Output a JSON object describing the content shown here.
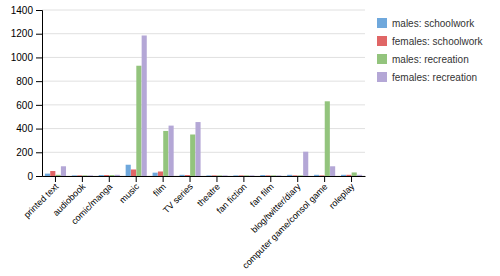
{
  "chart_data": {
    "type": "bar",
    "categories": [
      "printed text",
      "audiobook",
      "comic/manga",
      "music",
      "film",
      "TV series",
      "theatre",
      "fan fiction",
      "fan film",
      "blog/twitter/diary",
      "computer game/consol game",
      "roleplay"
    ],
    "series": [
      {
        "name": "males: schoolwork",
        "color": "#6fa8dc",
        "values": [
          20,
          5,
          8,
          95,
          28,
          10,
          5,
          5,
          8,
          10,
          10,
          10
        ]
      },
      {
        "name": "females: schoolwork",
        "color": "#e06666",
        "values": [
          42,
          5,
          8,
          55,
          38,
          8,
          5,
          5,
          5,
          5,
          5,
          10
        ]
      },
      {
        "name": "males: recreation",
        "color": "#93c47d",
        "values": [
          10,
          5,
          8,
          930,
          380,
          350,
          5,
          5,
          5,
          5,
          630,
          30
        ]
      },
      {
        "name": "females: recreation",
        "color": "#b4a7d6",
        "values": [
          82,
          5,
          10,
          1185,
          425,
          455,
          5,
          5,
          5,
          205,
          82,
          10
        ]
      }
    ],
    "ylim": [
      0,
      1400
    ],
    "yticks": [
      0,
      200,
      400,
      600,
      800,
      1000,
      1200,
      1400
    ],
    "grid": true,
    "legend": "right"
  }
}
